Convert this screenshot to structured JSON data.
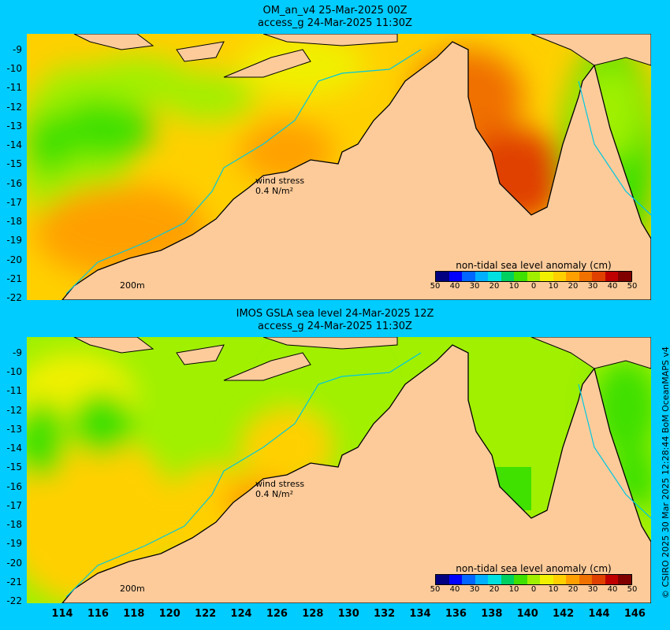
{
  "top_panel": {
    "title_line1": "OM_an_v4  25-Mar-2025 00Z",
    "title_line2": "access_g 24-Mar-2025 11:30Z",
    "wind_label": "wind stress",
    "wind_value": "0.4 N/m²",
    "depth_label": "200m",
    "legend_title": "non-tidal sea level anomaly (cm)"
  },
  "bottom_panel": {
    "title_line1": "IMOS GSLA sea level  24-Mar-2025 12Z",
    "title_line2": "access_g 24-Mar-2025 11:30Z",
    "wind_label": "wind stress",
    "wind_value": "0.4 N/m²",
    "depth_label": "200m",
    "legend_title": "non-tidal sea level anomaly (cm)"
  },
  "latitude_labels": [
    "-9",
    "-10",
    "-11",
    "-12",
    "-13",
    "-14",
    "-15",
    "-16",
    "-17",
    "-18",
    "-19",
    "-20",
    "-21",
    "-22"
  ],
  "longitude_labels": [
    "114",
    "116",
    "118",
    "120",
    "122",
    "124",
    "126",
    "128",
    "130",
    "132",
    "134",
    "136",
    "138",
    "140",
    "142",
    "144",
    "146"
  ],
  "legend_ticks": [
    "50",
    "40",
    "30",
    "20",
    "10",
    "0",
    "10",
    "20",
    "30",
    "40",
    "50"
  ],
  "credit": "© CSIRO 2025   30 Mar 2025 12:28:44 BoM OceanMAPS v4",
  "colors": {
    "background": "#00ccff",
    "land": "#fdcb9a",
    "scale": [
      "#000080",
      "#0000ff",
      "#0066ff",
      "#00b0ff",
      "#00e0e0",
      "#00d060",
      "#40e000",
      "#a0f000",
      "#f0f000",
      "#ffd000",
      "#ffa000",
      "#f07000",
      "#e04000",
      "#c00000",
      "#800000"
    ]
  }
}
